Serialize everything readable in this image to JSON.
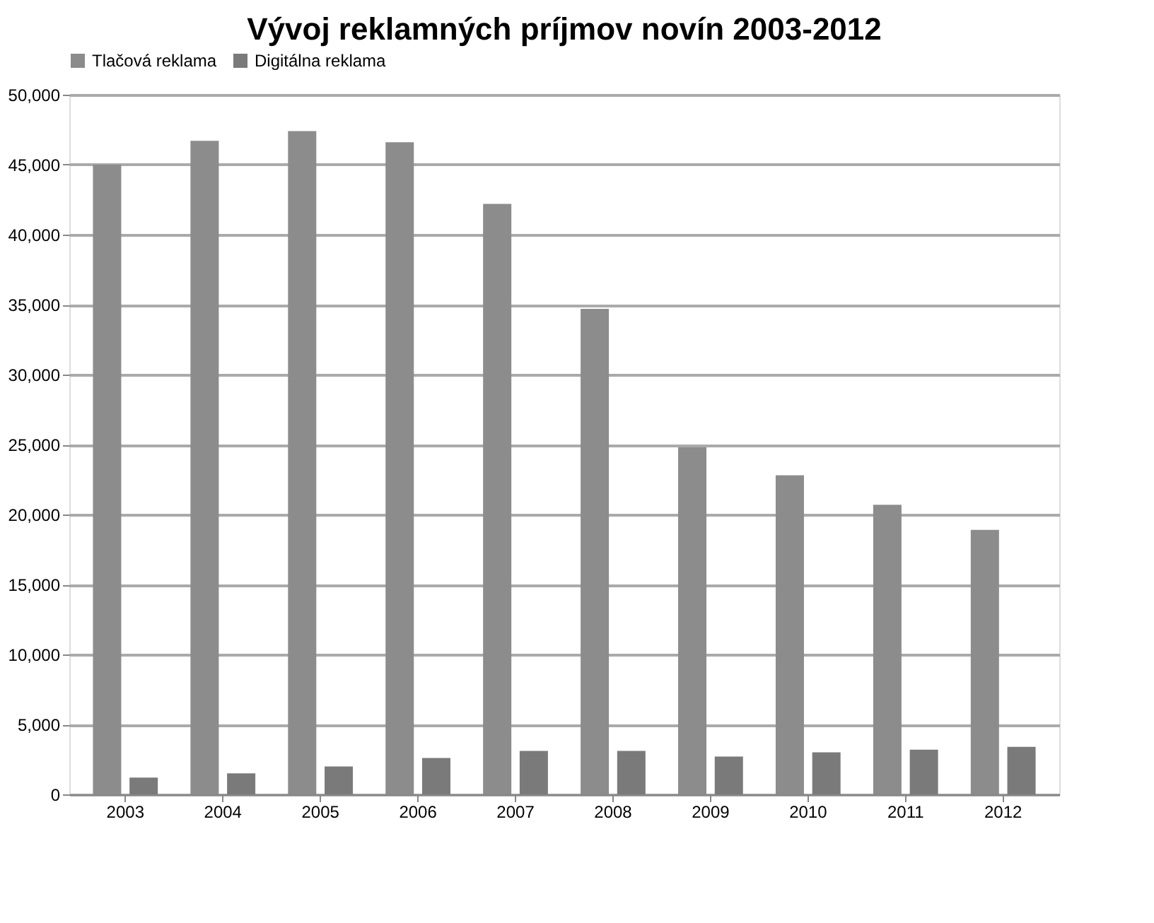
{
  "chart_data": {
    "type": "bar",
    "title": "Vývoj reklamných príjmov novín 2003-2012",
    "categories": [
      "2003",
      "2004",
      "2005",
      "2006",
      "2007",
      "2008",
      "2009",
      "2010",
      "2011",
      "2012"
    ],
    "series": [
      {
        "name": "Tlačová reklama",
        "color": "#8c8c8c",
        "values": [
          45000,
          46700,
          47400,
          46600,
          42200,
          34700,
          24800,
          22800,
          20700,
          18900
        ]
      },
      {
        "name": "Digitálna reklama",
        "color": "#7a7a7a",
        "values": [
          1200,
          1500,
          2000,
          2600,
          3100,
          3100,
          2700,
          3000,
          3200,
          3400
        ]
      }
    ],
    "ylim": [
      0,
      50000
    ],
    "yticks": [
      {
        "value": 0,
        "label": "0"
      },
      {
        "value": 5000,
        "label": "5,000"
      },
      {
        "value": 10000,
        "label": "10,000"
      },
      {
        "value": 15000,
        "label": "15,000"
      },
      {
        "value": 20000,
        "label": "20,000"
      },
      {
        "value": 25000,
        "label": "25,000"
      },
      {
        "value": 30000,
        "label": "30,000"
      },
      {
        "value": 35000,
        "label": "35,000"
      },
      {
        "value": 40000,
        "label": "40,000"
      },
      {
        "value": 45000,
        "label": "45,000"
      },
      {
        "value": 50000,
        "label": "50,000"
      }
    ],
    "grid": "y",
    "legend": "top"
  }
}
